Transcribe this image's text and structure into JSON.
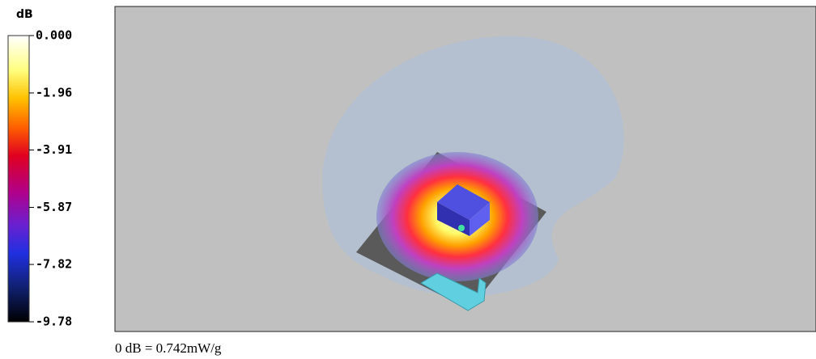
{
  "chart_data": {
    "type": "colorbar",
    "title": "dB",
    "ylim": [
      -9.78,
      0
    ],
    "yticks": [
      {
        "value": 0,
        "label": "0.000"
      },
      -1.96,
      -3.91,
      -5.87,
      -7.82,
      -9.78
    ],
    "annotation": "0 dB = 0.742mW/g"
  }
}
